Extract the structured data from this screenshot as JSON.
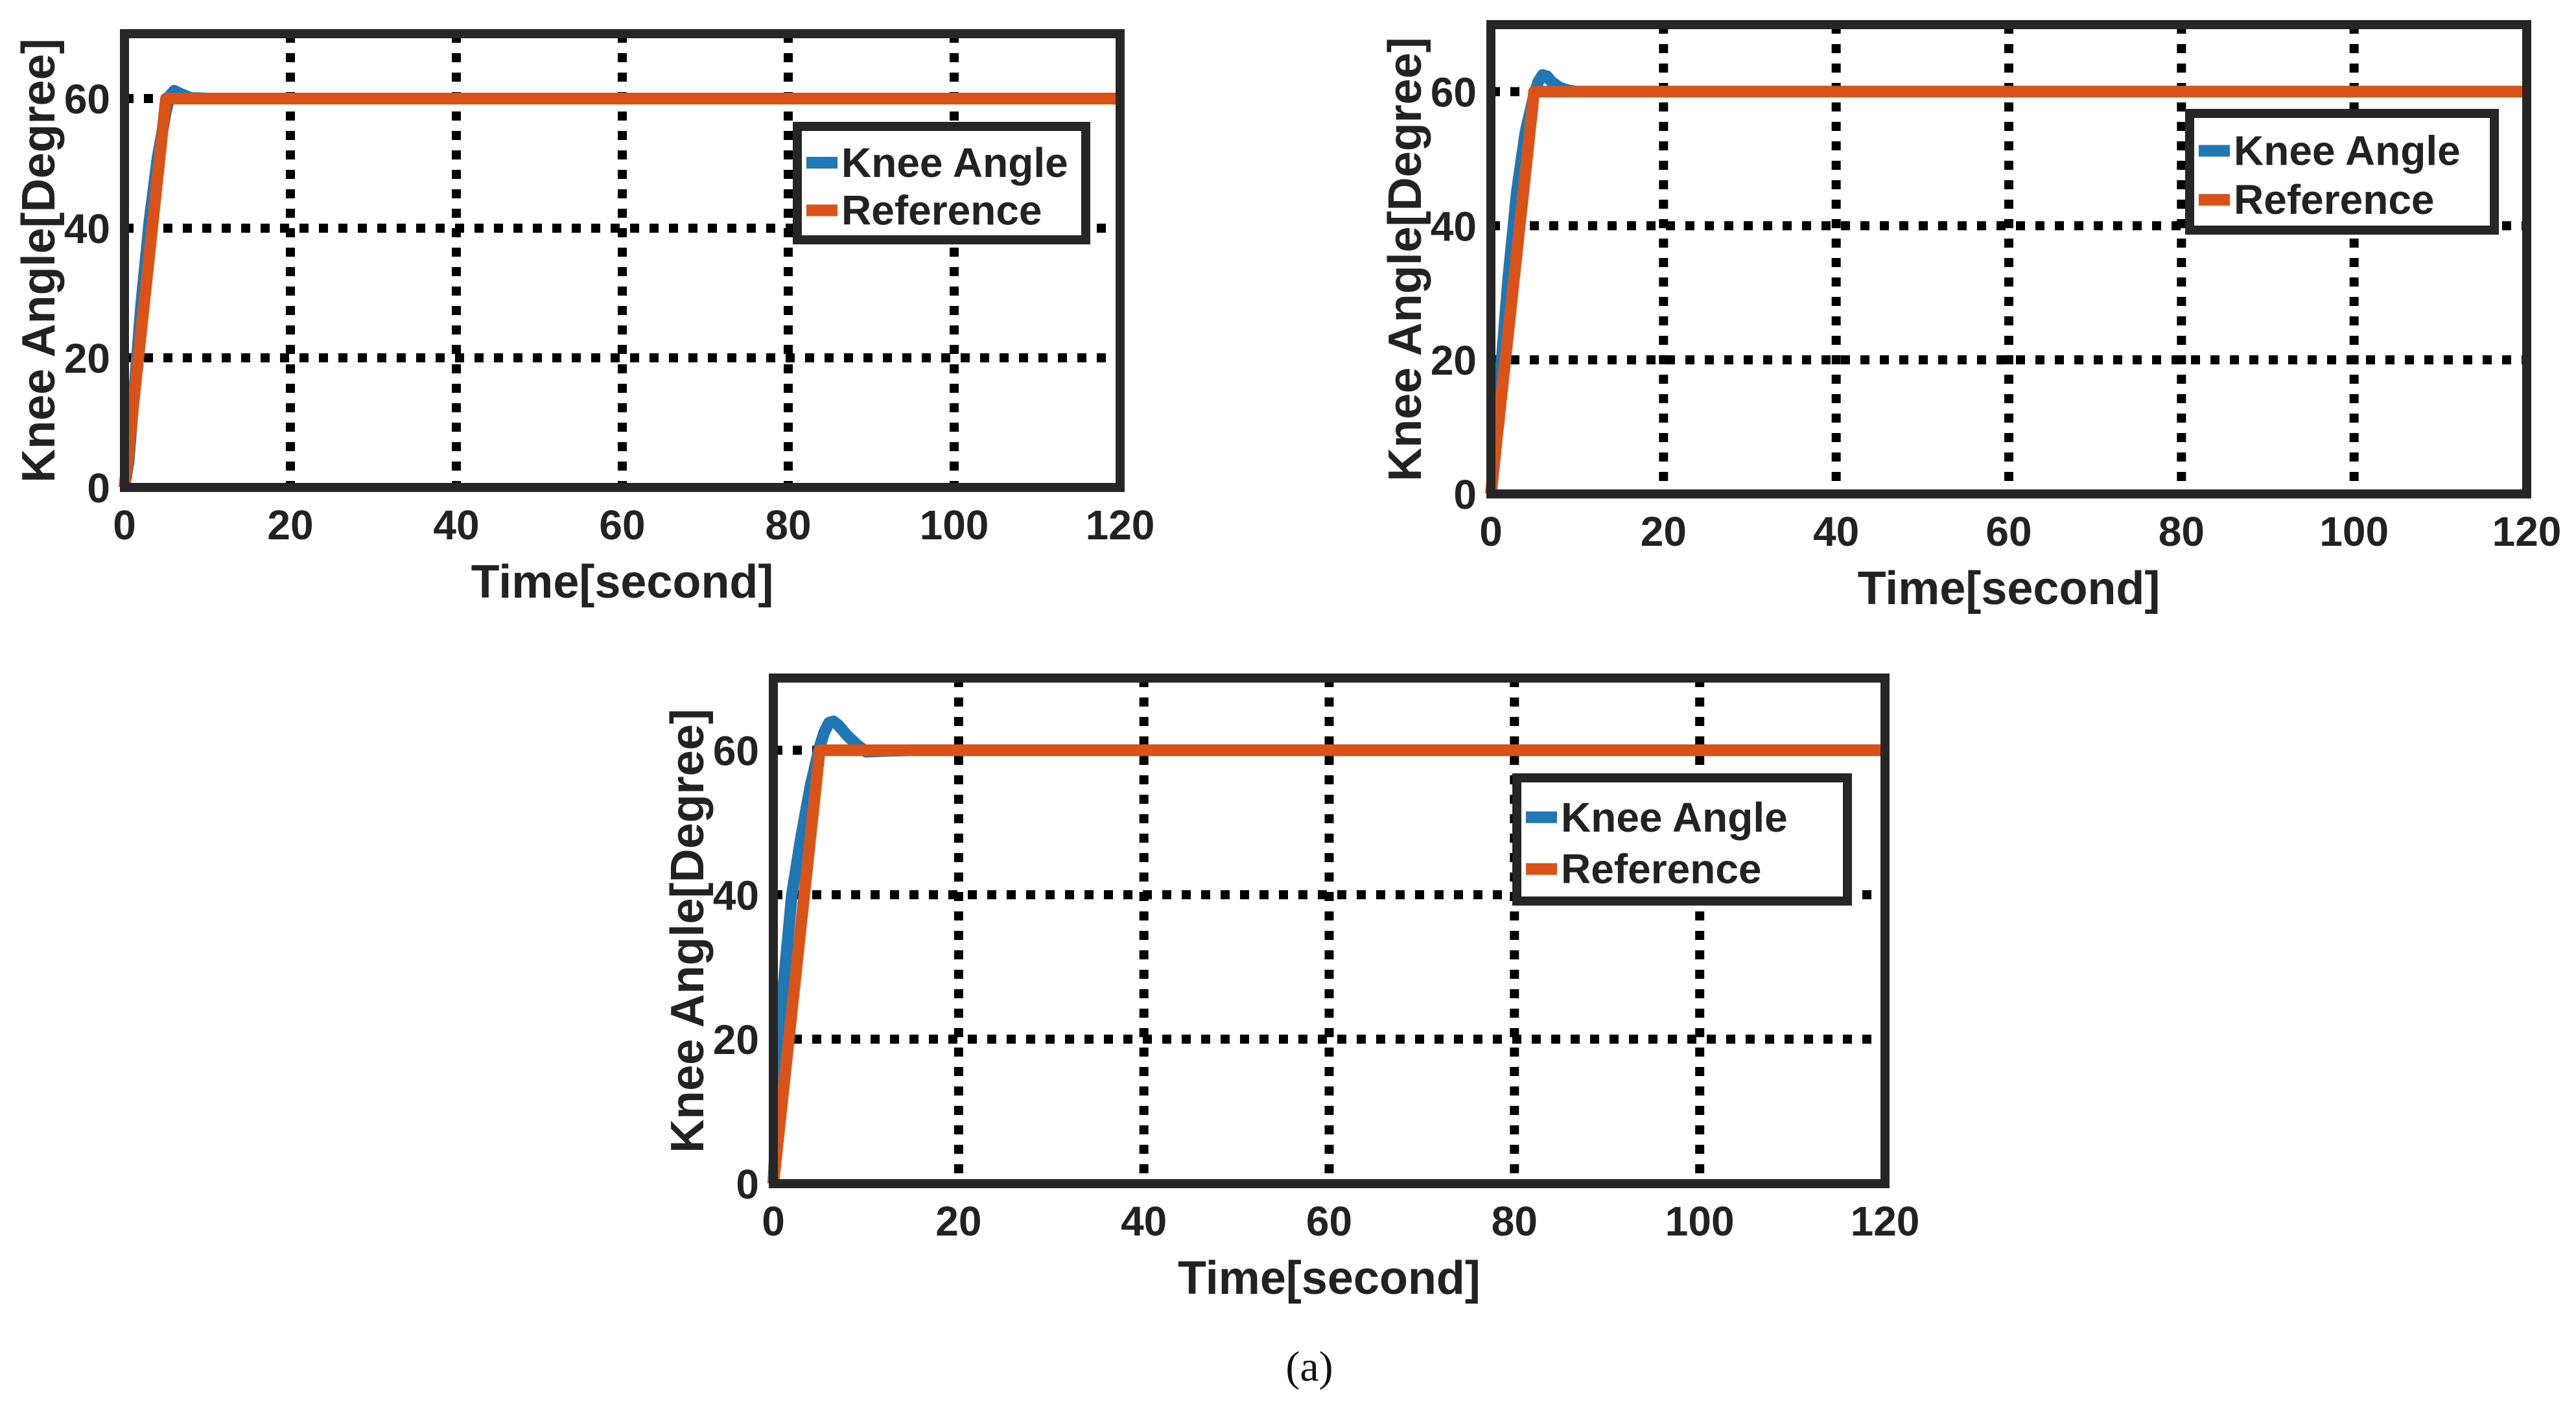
{
  "figure": {
    "caption": "(a)",
    "colors": {
      "knee": "#1f77b4",
      "reference": "#d95319",
      "axes": "#262626",
      "grid": "#000000",
      "text": "#222222"
    }
  },
  "chart_data": [
    {
      "type": "line",
      "title": "",
      "xlabel": "Time[second]",
      "ylabel": "Knee Angle[Degree]",
      "xlim": [
        0,
        120
      ],
      "ylim": [
        0,
        70
      ],
      "xticks": [
        0,
        20,
        40,
        60,
        80,
        100,
        120
      ],
      "yticks": [
        0,
        20,
        40,
        60
      ],
      "grid": true,
      "legend_position": "top-right",
      "series": [
        {
          "name": "Knee Angle",
          "color": "#1f77b4",
          "x": [
            0,
            0.5,
            1,
            2,
            3,
            4,
            5,
            5.5,
            6,
            7,
            8,
            10,
            15,
            20,
            40,
            60,
            80,
            100,
            120
          ],
          "y": [
            0,
            4,
            12,
            28,
            41,
            51,
            58,
            60.5,
            61.2,
            60.6,
            60.1,
            60,
            60,
            60,
            60,
            60,
            60,
            60,
            60
          ]
        },
        {
          "name": "Reference",
          "color": "#d95319",
          "x": [
            0,
            5,
            120
          ],
          "y": [
            0,
            60,
            60
          ]
        }
      ]
    },
    {
      "type": "line",
      "title": "",
      "xlabel": "Time[second]",
      "ylabel": "Knee Angle[Degree]",
      "xlim": [
        0,
        120
      ],
      "ylim": [
        0,
        70
      ],
      "xticks": [
        0,
        20,
        40,
        60,
        80,
        100,
        120
      ],
      "yticks": [
        0,
        20,
        40,
        60
      ],
      "grid": true,
      "legend_position": "top-right",
      "series": [
        {
          "name": "Knee Angle",
          "color": "#1f77b4",
          "x": [
            0,
            0.5,
            1,
            2,
            3,
            4,
            5,
            5.5,
            6,
            6.5,
            7,
            8,
            9,
            10,
            15,
            20,
            40,
            60,
            80,
            100,
            120
          ],
          "y": [
            0,
            6,
            16,
            32,
            45,
            54,
            59.5,
            61.5,
            62.5,
            62.3,
            61.5,
            60.6,
            60.2,
            60,
            60,
            60,
            60,
            60,
            60,
            60,
            60
          ]
        },
        {
          "name": "Reference",
          "color": "#d95319",
          "x": [
            0,
            5,
            120
          ],
          "y": [
            0,
            60,
            60
          ]
        }
      ]
    },
    {
      "type": "line",
      "title": "",
      "xlabel": "Time[second]",
      "ylabel": "Knee Angle[Degree]",
      "xlim": [
        0,
        120
      ],
      "ylim": [
        0,
        70
      ],
      "xticks": [
        0,
        20,
        40,
        60,
        80,
        100,
        120
      ],
      "yticks": [
        0,
        20,
        40,
        60
      ],
      "grid": true,
      "legend_position": "top-right",
      "series": [
        {
          "name": "Knee Angle",
          "color": "#1f77b4",
          "x": [
            0,
            0.5,
            1,
            2,
            3,
            4,
            5,
            5.5,
            6,
            6.5,
            7,
            8,
            9,
            10,
            12,
            15,
            20,
            40,
            60,
            80,
            100,
            120
          ],
          "y": [
            0,
            12,
            26,
            40,
            48,
            55,
            60.5,
            62.5,
            63.8,
            64,
            63.5,
            62,
            60.8,
            59.8,
            59.9,
            60,
            60,
            60,
            60,
            60,
            60,
            60
          ]
        },
        {
          "name": "Reference",
          "color": "#d95319",
          "x": [
            0,
            5,
            120
          ],
          "y": [
            0,
            60,
            60
          ]
        }
      ]
    }
  ]
}
